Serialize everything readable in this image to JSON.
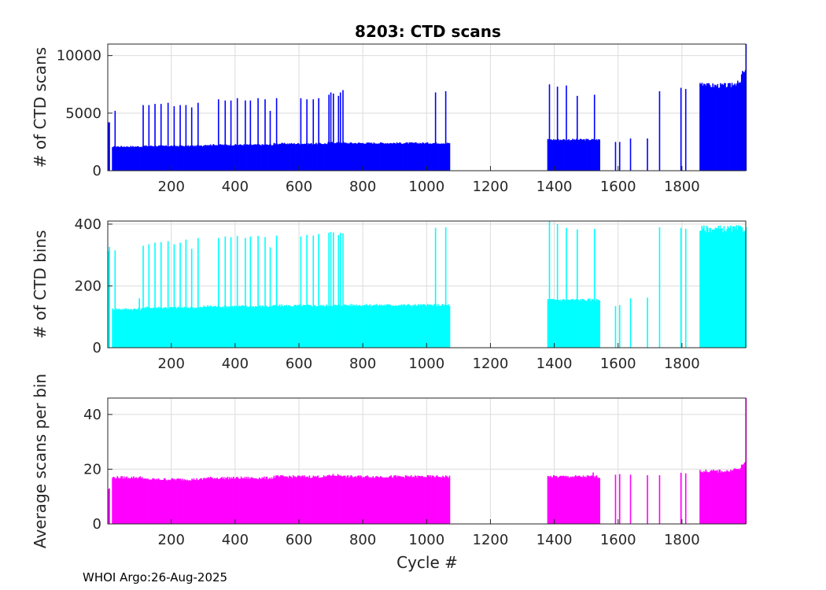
{
  "chart_data": [
    {
      "type": "bar",
      "title": "8203: CTD scans",
      "xlabel": "",
      "ylabel": "# of CTD scans",
      "xlim": [
        1,
        2000
      ],
      "ylim": [
        0,
        11000
      ],
      "xticks": [
        200,
        400,
        600,
        800,
        1000,
        1200,
        1400,
        1600,
        1800
      ],
      "yticks": [
        0,
        5000,
        10000
      ],
      "grid": true,
      "color": "#0000ff",
      "segments": [
        {
          "x_start": 1,
          "x_end": 6,
          "value": 4100
        },
        {
          "x_start": 14,
          "x_end": 110,
          "value": 2100
        },
        {
          "x_start": 110,
          "x_end": 300,
          "value": 2150
        },
        {
          "x_start": 300,
          "x_end": 520,
          "value": 2250
        },
        {
          "x_start": 520,
          "x_end": 690,
          "value": 2350
        },
        {
          "x_start": 690,
          "x_end": 740,
          "value": 2450
        },
        {
          "x_start": 740,
          "x_end": 1070,
          "value": 2400
        },
        {
          "x_start": 1378,
          "x_end": 1540,
          "value": 2700
        },
        {
          "x_start": 1855,
          "x_end": 1880,
          "value": 7600
        },
        {
          "x_start": 1880,
          "x_end": 1955,
          "value": 7400
        },
        {
          "x_start": 1955,
          "x_end": 1985,
          "value": 7600
        },
        {
          "x_start": 1985,
          "x_end": 1998,
          "value": 8500
        }
      ],
      "spikes": [
        {
          "x": 22,
          "value": 5200
        },
        {
          "x": 110,
          "value": 5700
        },
        {
          "x": 128,
          "value": 5700
        },
        {
          "x": 147,
          "value": 5800
        },
        {
          "x": 166,
          "value": 5800
        },
        {
          "x": 188,
          "value": 5900
        },
        {
          "x": 207,
          "value": 5600
        },
        {
          "x": 226,
          "value": 5700
        },
        {
          "x": 244,
          "value": 5700
        },
        {
          "x": 262,
          "value": 5500
        },
        {
          "x": 282,
          "value": 5900
        },
        {
          "x": 346,
          "value": 6200
        },
        {
          "x": 367,
          "value": 6100
        },
        {
          "x": 385,
          "value": 6100
        },
        {
          "x": 405,
          "value": 6300
        },
        {
          "x": 430,
          "value": 6100
        },
        {
          "x": 446,
          "value": 6100
        },
        {
          "x": 470,
          "value": 6300
        },
        {
          "x": 492,
          "value": 6200
        },
        {
          "x": 508,
          "value": 5200
        },
        {
          "x": 528,
          "value": 6300
        },
        {
          "x": 604,
          "value": 6300
        },
        {
          "x": 623,
          "value": 6200
        },
        {
          "x": 643,
          "value": 6200
        },
        {
          "x": 660,
          "value": 6300
        },
        {
          "x": 692,
          "value": 6600
        },
        {
          "x": 698,
          "value": 6800
        },
        {
          "x": 706,
          "value": 6700
        },
        {
          "x": 722,
          "value": 6500
        },
        {
          "x": 728,
          "value": 6800
        },
        {
          "x": 736,
          "value": 7000
        },
        {
          "x": 1026,
          "value": 6800
        },
        {
          "x": 1058,
          "value": 6900
        },
        {
          "x": 1383,
          "value": 7500
        },
        {
          "x": 1408,
          "value": 7300
        },
        {
          "x": 1436,
          "value": 7400
        },
        {
          "x": 1470,
          "value": 6500
        },
        {
          "x": 1524,
          "value": 6600
        },
        {
          "x": 1590,
          "value": 2500
        },
        {
          "x": 1603,
          "value": 2500
        },
        {
          "x": 1637,
          "value": 2800
        },
        {
          "x": 1690,
          "value": 2800
        },
        {
          "x": 1728,
          "value": 6900
        },
        {
          "x": 1795,
          "value": 7200
        },
        {
          "x": 1810,
          "value": 7100
        },
        {
          "x": 1999,
          "value": 11000
        }
      ]
    },
    {
      "type": "bar",
      "title": "",
      "xlabel": "",
      "ylabel": "# of CTD bins",
      "xlim": [
        1,
        2000
      ],
      "ylim": [
        0,
        410
      ],
      "xticks": [
        200,
        400,
        600,
        800,
        1000,
        1200,
        1400,
        1600,
        1800
      ],
      "yticks": [
        0,
        200,
        400
      ],
      "grid": true,
      "color": "#00ffff",
      "segments": [
        {
          "x_start": 1,
          "x_end": 6,
          "value": 320
        },
        {
          "x_start": 14,
          "x_end": 110,
          "value": 125
        },
        {
          "x_start": 110,
          "x_end": 300,
          "value": 130
        },
        {
          "x_start": 300,
          "x_end": 520,
          "value": 134
        },
        {
          "x_start": 520,
          "x_end": 690,
          "value": 136
        },
        {
          "x_start": 690,
          "x_end": 740,
          "value": 137
        },
        {
          "x_start": 740,
          "x_end": 1070,
          "value": 138
        },
        {
          "x_start": 1378,
          "x_end": 1540,
          "value": 155
        },
        {
          "x_start": 1855,
          "x_end": 1998,
          "value": 385
        }
      ],
      "spikes": [
        {
          "x": 22,
          "value": 315
        },
        {
          "x": 98,
          "value": 160
        },
        {
          "x": 110,
          "value": 330
        },
        {
          "x": 128,
          "value": 335
        },
        {
          "x": 147,
          "value": 340
        },
        {
          "x": 166,
          "value": 342
        },
        {
          "x": 188,
          "value": 345
        },
        {
          "x": 207,
          "value": 335
        },
        {
          "x": 226,
          "value": 340
        },
        {
          "x": 244,
          "value": 350
        },
        {
          "x": 262,
          "value": 320
        },
        {
          "x": 282,
          "value": 355
        },
        {
          "x": 346,
          "value": 355
        },
        {
          "x": 367,
          "value": 360
        },
        {
          "x": 385,
          "value": 358
        },
        {
          "x": 405,
          "value": 362
        },
        {
          "x": 430,
          "value": 355
        },
        {
          "x": 446,
          "value": 360
        },
        {
          "x": 470,
          "value": 362
        },
        {
          "x": 492,
          "value": 358
        },
        {
          "x": 508,
          "value": 325
        },
        {
          "x": 528,
          "value": 363
        },
        {
          "x": 604,
          "value": 360
        },
        {
          "x": 623,
          "value": 365
        },
        {
          "x": 643,
          "value": 363
        },
        {
          "x": 660,
          "value": 368
        },
        {
          "x": 692,
          "value": 372
        },
        {
          "x": 698,
          "value": 375
        },
        {
          "x": 706,
          "value": 373
        },
        {
          "x": 722,
          "value": 365
        },
        {
          "x": 728,
          "value": 372
        },
        {
          "x": 736,
          "value": 370
        },
        {
          "x": 1026,
          "value": 388
        },
        {
          "x": 1058,
          "value": 390
        },
        {
          "x": 1383,
          "value": 410
        },
        {
          "x": 1408,
          "value": 400
        },
        {
          "x": 1436,
          "value": 388
        },
        {
          "x": 1470,
          "value": 383
        },
        {
          "x": 1524,
          "value": 385
        },
        {
          "x": 1590,
          "value": 135
        },
        {
          "x": 1603,
          "value": 138
        },
        {
          "x": 1637,
          "value": 160
        },
        {
          "x": 1690,
          "value": 162
        },
        {
          "x": 1728,
          "value": 390
        },
        {
          "x": 1795,
          "value": 388
        },
        {
          "x": 1810,
          "value": 385
        },
        {
          "x": 1999,
          "value": 390
        }
      ]
    },
    {
      "type": "bar",
      "title": "",
      "xlabel": "Cycle #",
      "ylabel": "Average scans per bin",
      "xlim": [
        1,
        2000
      ],
      "ylim": [
        0,
        46
      ],
      "xticks": [
        200,
        400,
        600,
        800,
        1000,
        1200,
        1400,
        1600,
        1800
      ],
      "yticks": [
        0,
        20,
        40
      ],
      "grid": true,
      "color": "#ff00ff",
      "segments": [
        {
          "x_start": 1,
          "x_end": 6,
          "value": 12.8
        },
        {
          "x_start": 14,
          "x_end": 110,
          "value": 17.0
        },
        {
          "x_start": 110,
          "x_end": 300,
          "value": 16.3
        },
        {
          "x_start": 300,
          "x_end": 520,
          "value": 16.8
        },
        {
          "x_start": 520,
          "x_end": 690,
          "value": 17.3
        },
        {
          "x_start": 690,
          "x_end": 740,
          "value": 17.8
        },
        {
          "x_start": 740,
          "x_end": 1070,
          "value": 17.3
        },
        {
          "x_start": 1378,
          "x_end": 1540,
          "value": 17.3
        },
        {
          "x_start": 1855,
          "x_end": 1955,
          "value": 19.3
        },
        {
          "x_start": 1955,
          "x_end": 1985,
          "value": 20.0
        },
        {
          "x_start": 1985,
          "x_end": 1998,
          "value": 22.0
        }
      ],
      "spikes": [
        {
          "x": 1520,
          "value": 18.8
        },
        {
          "x": 1590,
          "value": 18.0
        },
        {
          "x": 1603,
          "value": 18.2
        },
        {
          "x": 1637,
          "value": 18.0
        },
        {
          "x": 1690,
          "value": 17.8
        },
        {
          "x": 1728,
          "value": 17.8
        },
        {
          "x": 1795,
          "value": 18.7
        },
        {
          "x": 1810,
          "value": 18.5
        },
        {
          "x": 1999,
          "value": 46
        }
      ]
    }
  ],
  "footer": {
    "text": "WHOI Argo:26-Aug-2025"
  }
}
